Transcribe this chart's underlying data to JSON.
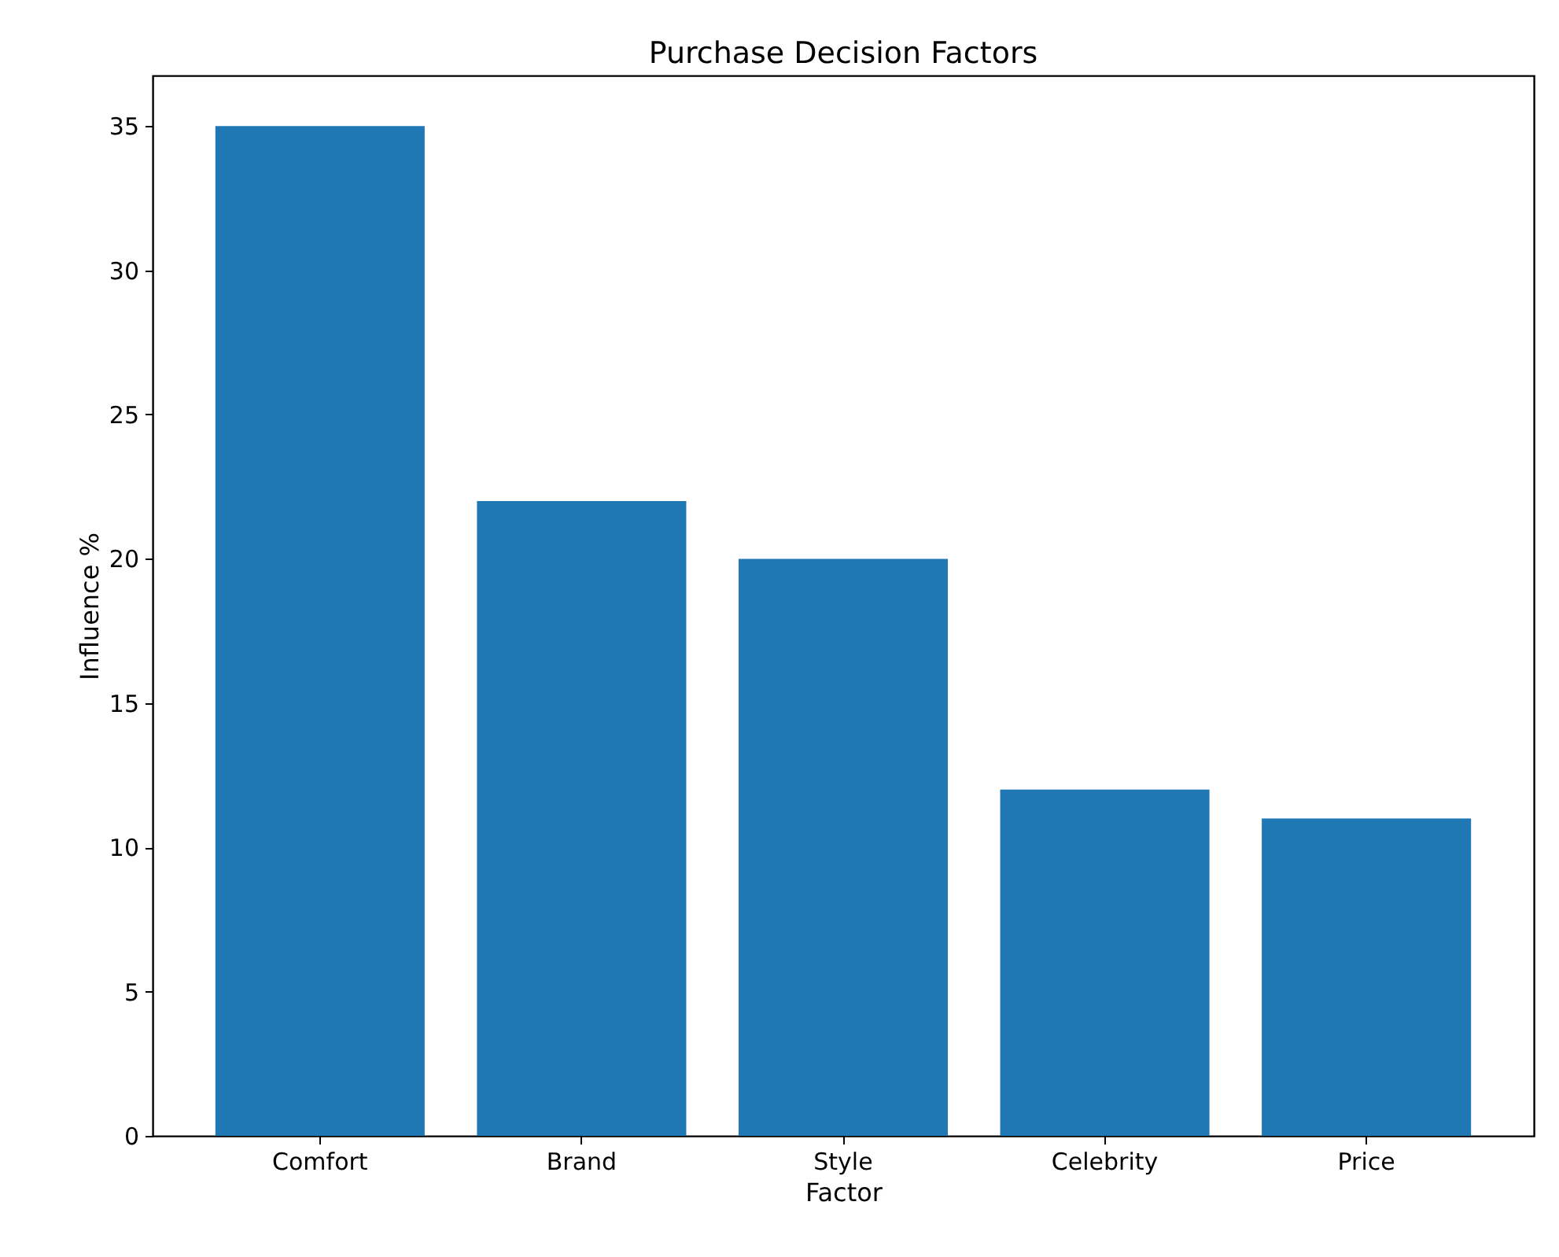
{
  "chart_data": {
    "type": "bar",
    "title": "Purchase Decision Factors",
    "xlabel": "Factor",
    "ylabel": "Influence %",
    "categories": [
      "Comfort",
      "Brand",
      "Style",
      "Celebrity",
      "Price"
    ],
    "values": [
      35,
      22,
      20,
      12,
      11
    ],
    "color": "#1f77b4",
    "ylim": [
      0,
      36.75
    ],
    "yticks": [
      0,
      5,
      10,
      15,
      20,
      25,
      30,
      35
    ],
    "grid": false
  }
}
